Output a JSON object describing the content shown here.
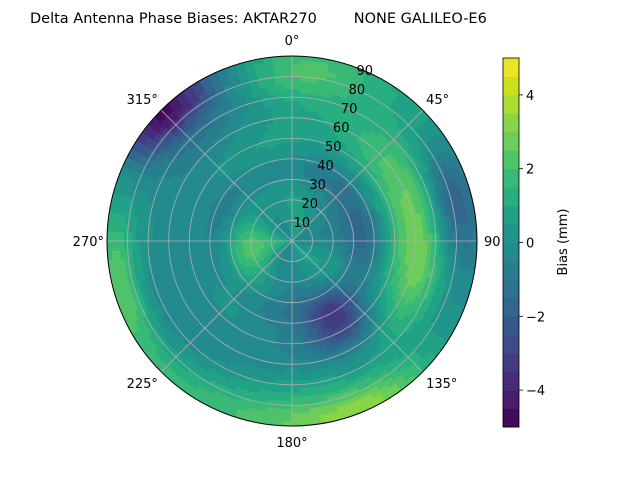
{
  "chart_data": {
    "type": "heatmap",
    "projection": "polar",
    "title": "Delta Antenna Phase Biases: AKTAR270        NONE GALILEO-E6",
    "theta_zero_location": "N",
    "theta_direction": "clockwise",
    "angle_ticks": [
      "0°",
      "45°",
      "90",
      "135°",
      "180°",
      "225°",
      "270°",
      "315°"
    ],
    "angle_tick_values": [
      0,
      45,
      90,
      135,
      180,
      225,
      270,
      315
    ],
    "radial_ticks": [
      "10",
      "20",
      "30",
      "40",
      "50",
      "60",
      "70",
      "80",
      "90"
    ],
    "radial_tick_values": [
      10,
      20,
      30,
      40,
      50,
      60,
      70,
      80,
      90
    ],
    "rlim": [
      0,
      90
    ],
    "grid": true,
    "colorbar": {
      "label": "Bias (mm)",
      "colormap": "viridis",
      "levels": [
        -5,
        -4.5,
        -4,
        -3.5,
        -3,
        -2.5,
        -2,
        -1.5,
        -1,
        -0.5,
        0,
        0.5,
        1,
        1.5,
        2,
        2.5,
        3,
        3.5,
        4,
        4.5,
        5
      ],
      "ticks": [
        -4,
        -2,
        0,
        2,
        4
      ],
      "tick_labels": [
        "−4",
        "−2",
        "0",
        "2",
        "4"
      ],
      "vmin": -5,
      "vmax": 5
    },
    "field_components": [
      {
        "kind": "base",
        "value": 0.1
      },
      {
        "kind": "center_blob",
        "theta": 270,
        "r": 22,
        "sigma_t": 30,
        "sigma_r": 11,
        "amp": 2.0
      },
      {
        "kind": "plume",
        "theta": 2,
        "r": 82,
        "sigma_t": 18,
        "sigma_r": 11,
        "amp": 2.3
      },
      {
        "kind": "arc_band",
        "theta": 60,
        "r": 58,
        "sigma_t": 45,
        "sigma_r": 11,
        "amp": 1.9
      },
      {
        "kind": "band_right",
        "theta": 110,
        "r": 65,
        "sigma_t": 22,
        "sigma_r": 9,
        "amp": 1.8
      },
      {
        "kind": "rim_bottom",
        "theta": 200,
        "r": 90,
        "sigma_t": 40,
        "sigma_r": 10,
        "amp": 2.2
      },
      {
        "kind": "rim_lower_right",
        "theta": 155,
        "r": 88,
        "sigma_t": 15,
        "sigma_r": 8,
        "amp": 1.5
      },
      {
        "kind": "rim_left_edge",
        "theta": 255,
        "r": 85,
        "sigma_t": 15,
        "sigma_r": 6,
        "amp": 1.5
      },
      {
        "kind": "trough_nw_rim",
        "theta": 315,
        "r": 88,
        "sigma_t": 12,
        "sigma_r": 8,
        "amp": -4.0
      },
      {
        "kind": "trough_nw_inner",
        "theta": 315,
        "r": 70,
        "sigma_t": 20,
        "sigma_r": 14,
        "amp": -1.6
      },
      {
        "kind": "trough_lower_right",
        "theta": 150,
        "r": 45,
        "sigma_t": 13,
        "sigma_r": 10,
        "amp": -2.8
      },
      {
        "kind": "trough_right_outer",
        "theta": 75,
        "r": 80,
        "sigma_t": 14,
        "sigma_r": 8,
        "amp": -2.2
      },
      {
        "kind": "trough_center_ring",
        "theta": 0,
        "r": 35,
        "sigma_t": 360,
        "sigma_r": 6,
        "amp": -0.9
      },
      {
        "kind": "trough_right_mid",
        "theta": 90,
        "r": 35,
        "sigma_t": 20,
        "sigma_r": 10,
        "amp": -1.4
      },
      {
        "kind": "trough_lower_mid",
        "theta": 195,
        "r": 55,
        "sigma_t": 25,
        "sigma_r": 10,
        "amp": -1.0
      }
    ]
  }
}
